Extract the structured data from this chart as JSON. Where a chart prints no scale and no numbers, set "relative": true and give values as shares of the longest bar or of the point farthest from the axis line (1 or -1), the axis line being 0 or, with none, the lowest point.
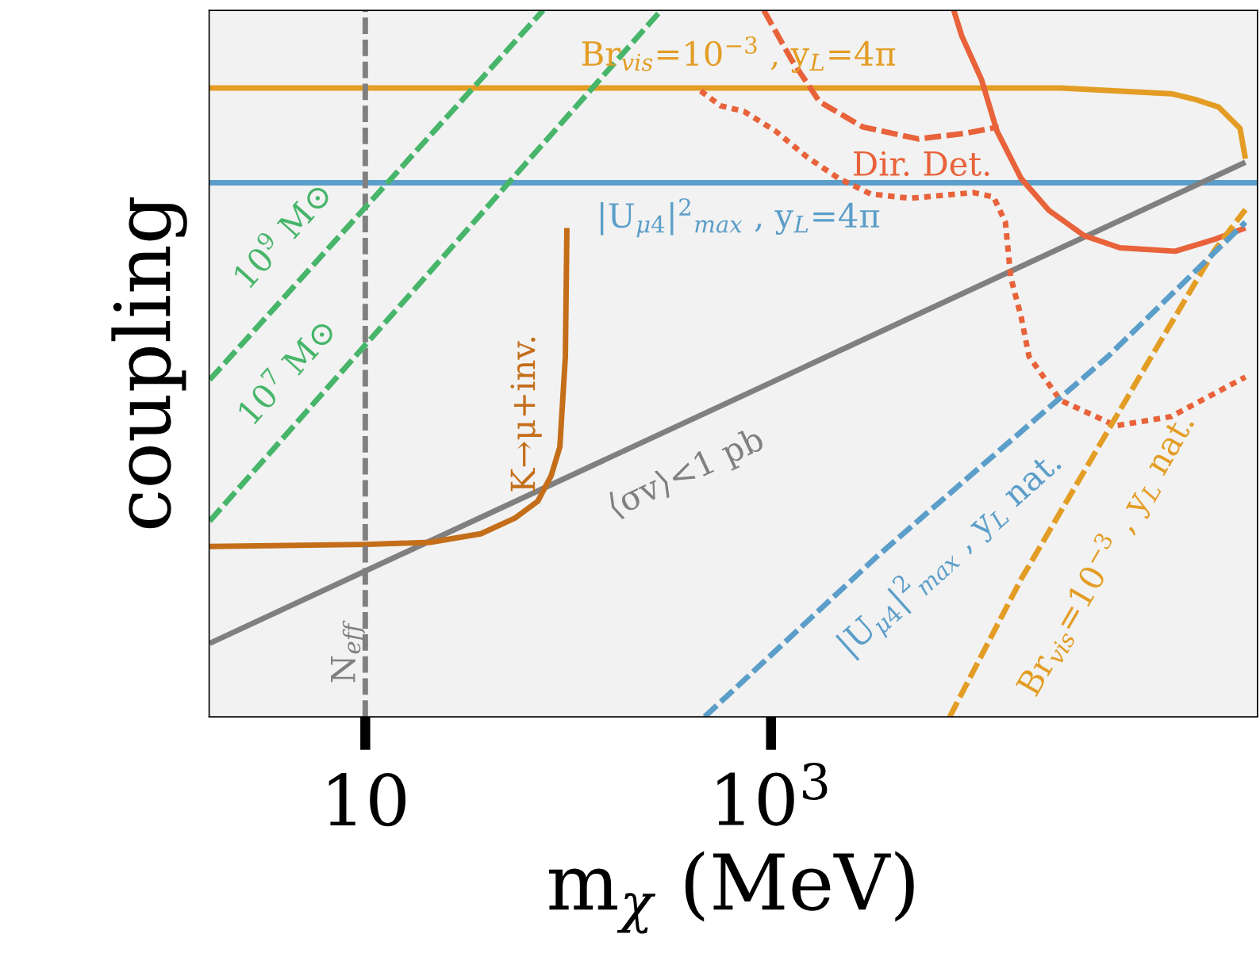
{
  "chart_data": {
    "type": "line",
    "relative": true,
    "log": "x",
    "xlabel": "m$_{χ}$ (MeV)",
    "ylabel": "coupling",
    "xlim": [
      1.7,
      250000
    ],
    "xticks": [
      10,
      {
        "value": 1000,
        "label": "10$^{3}$"
      }
    ],
    "grid": false,
    "legend": false,
    "tick_labels": "x",
    "series": [
      {
        "name": "Br$_{vis}$=10$^{−3}$ , y$_{L}$=4π",
        "color": "#e39d25",
        "line_style": "solid",
        "x": [
          1.71,
          26700,
          94000,
          123000,
          161000,
          205000,
          218000
        ],
        "values": [
          0.89,
          0.89,
          0.882,
          0.874,
          0.863,
          0.833,
          0.79
        ]
      },
      {
        "name": "|U$_{μ4}$|$^{2}$$_{max}$ , y$_{L}$=4π",
        "color": "#5b9ec9",
        "line_style": "solid",
        "x": [
          1.71,
          250000
        ],
        "values": [
          0.756,
          0.756
        ]
      },
      {
        "name": "10$^{9}$ M⊙",
        "color": "#47b56a",
        "line_style": "dashed",
        "x": [
          1.71,
          75.3
        ],
        "values": [
          0.477,
          1.0
        ]
      },
      {
        "name": "10$^{7}$ M⊙",
        "color": "#47b56a",
        "line_style": "dashed",
        "x": [
          1.71,
          287
        ],
        "values": [
          0.277,
          1.0
        ]
      },
      {
        "name": "⟨σv⟩<1 pb",
        "color": "#808080",
        "line_style": "solid",
        "x": [
          1.71,
          218000
        ],
        "values": [
          0.104,
          0.785
        ]
      },
      {
        "name": "K→μ+inv.",
        "color": "#c46e1a",
        "line_style": "solid",
        "x": [
          1.71,
          10.27,
          20.9,
          37.1,
          54.5,
          70.8,
          82.4,
          91.0,
          96.9,
          98.6
        ],
        "values": [
          0.241,
          0.244,
          0.247,
          0.259,
          0.281,
          0.305,
          0.341,
          0.382,
          0.51,
          0.692
        ]
      },
      {
        "name": "Dir. Det.",
        "color": "#e8623a",
        "line_style": "solid",
        "x": [
          7960,
          8710,
          10900,
          13000,
          17100,
          23400,
          35000,
          52400,
          98200,
          154000,
          218000
        ],
        "values": [
          1.0,
          0.964,
          0.902,
          0.829,
          0.762,
          0.717,
          0.681,
          0.664,
          0.659,
          0.676,
          0.692
        ]
      },
      {
        "color": "#e8623a",
        "line_style": "dashed",
        "x": [
          922,
          1262,
          1730,
          2830,
          5310,
          9100,
          13270
        ],
        "values": [
          1.0,
          0.93,
          0.871,
          0.835,
          0.818,
          0.826,
          0.835
        ]
      },
      {
        "color": "#e8623a",
        "line_style": "dotted",
        "x": [
          450,
          563,
          736,
          1054,
          1510,
          2160,
          3100,
          4850,
          9950,
          12500,
          14300,
          15200,
          17100,
          18700,
          26700,
          50100,
          93900,
          218000
        ],
        "values": [
          0.886,
          0.865,
          0.857,
          0.829,
          0.792,
          0.762,
          0.74,
          0.734,
          0.742,
          0.736,
          0.7,
          0.622,
          0.566,
          0.51,
          0.448,
          0.412,
          0.425,
          0.481
        ]
      },
      {
        "name": "|U$_{μ4}$|$^{2}$$_{max}$ , y$_{L}$ nat.",
        "color": "#5b9ec9",
        "line_style": "dashed",
        "x": [
          471,
          3390,
          45800,
          218000
        ],
        "values": [
          0.0,
          0.229,
          0.51,
          0.7
        ]
      },
      {
        "name": "Br$_{vis}$=10$^{−3}$ , y$_{L}$ nat.",
        "color": "#e39d25",
        "line_style": "dashed",
        "x": [
          7600,
          17100,
          75000,
          154000,
          218000
        ],
        "values": [
          0.0,
          0.195,
          0.51,
          0.661,
          0.718
        ]
      }
    ],
    "ref_lines": [
      {
        "axis": "x",
        "value": 10,
        "label": "N$_{eff}$",
        "color": "#808080",
        "line_style": "dashed"
      }
    ]
  }
}
